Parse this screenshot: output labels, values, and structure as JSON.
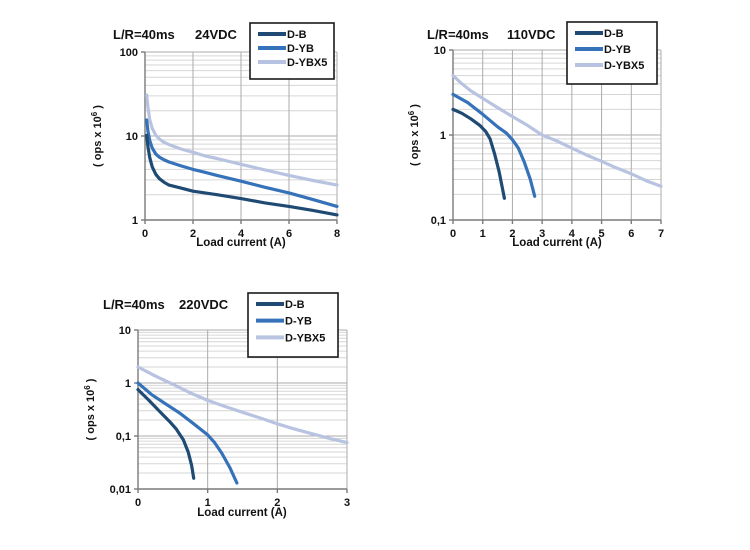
{
  "page": {
    "background": "#ffffff"
  },
  "palette": {
    "series_d_b": "#1f4a73",
    "series_d_yb": "#3672b9",
    "series_d_ybx5": "#b7c3e0",
    "grid_major": "#ababab",
    "grid_minor": "#d6d6d6",
    "axis": "#7a7a7a",
    "text": "#111111",
    "legend_border": "#1a1a1a",
    "legend_bg": "#ffffff"
  },
  "chart_data": [
    {
      "type": "line",
      "title": "L/R=40ms",
      "voltage": "24VDC",
      "xlabel": "Load current (A)",
      "ylabel_base": "( ops x 10",
      "ylabel_sup": "6",
      "ylabel_end": " )",
      "xlim": [
        0,
        8
      ],
      "x_ticks": [
        0,
        2,
        4,
        6,
        8
      ],
      "ylog_lim": [
        1,
        100
      ],
      "y_ticks": [
        {
          "v": 1,
          "label": "1"
        },
        {
          "v": 10,
          "label": "10"
        },
        {
          "v": 100,
          "label": "100"
        }
      ],
      "grid": "log-minor",
      "legend_position": "top-right",
      "legend": [
        "D-B",
        "D-YB",
        "D-YBX5"
      ],
      "series": [
        {
          "name": "D-B",
          "color_key": "series_d_b",
          "points": [
            [
              0.07,
              10.2
            ],
            [
              0.12,
              7.5
            ],
            [
              0.2,
              5.5
            ],
            [
              0.3,
              4.3
            ],
            [
              0.45,
              3.5
            ],
            [
              0.6,
              3.1
            ],
            [
              0.8,
              2.8
            ],
            [
              1,
              2.6
            ],
            [
              1.5,
              2.4
            ],
            [
              2,
              2.2
            ],
            [
              2.5,
              2.1
            ],
            [
              3,
              2.0
            ],
            [
              4,
              1.8
            ],
            [
              5,
              1.6
            ],
            [
              6,
              1.45
            ],
            [
              7,
              1.3
            ],
            [
              8,
              1.15
            ]
          ]
        },
        {
          "name": "D-YB",
          "color_key": "series_d_yb",
          "points": [
            [
              0.07,
              15.5
            ],
            [
              0.12,
              11.5
            ],
            [
              0.2,
              8.8
            ],
            [
              0.3,
              7.2
            ],
            [
              0.45,
              6.1
            ],
            [
              0.6,
              5.6
            ],
            [
              0.8,
              5.2
            ],
            [
              1,
              4.9
            ],
            [
              1.5,
              4.4
            ],
            [
              2,
              4.0
            ],
            [
              2.5,
              3.7
            ],
            [
              3,
              3.4
            ],
            [
              4,
              2.9
            ],
            [
              5,
              2.45
            ],
            [
              6,
              2.1
            ],
            [
              7,
              1.75
            ],
            [
              8,
              1.45
            ]
          ]
        },
        {
          "name": "D-YBX5",
          "color_key": "series_d_ybx5",
          "points": [
            [
              0.07,
              30.8
            ],
            [
              0.12,
              22
            ],
            [
              0.2,
              15.5
            ],
            [
              0.3,
              12.3
            ],
            [
              0.45,
              10.2
            ],
            [
              0.6,
              9.2
            ],
            [
              0.8,
              8.4
            ],
            [
              1,
              7.9
            ],
            [
              1.5,
              7.0
            ],
            [
              2,
              6.4
            ],
            [
              2.5,
              5.8
            ],
            [
              3,
              5.4
            ],
            [
              4,
              4.6
            ],
            [
              5,
              3.95
            ],
            [
              6,
              3.4
            ],
            [
              7,
              2.95
            ],
            [
              8,
              2.6
            ]
          ]
        }
      ]
    },
    {
      "type": "line",
      "title": "L/R=40ms",
      "voltage": "110VDC",
      "xlabel": "Load current (A)",
      "ylabel_base": "( ops x 10",
      "ylabel_sup": "6",
      "ylabel_end": " )",
      "xlim": [
        0,
        7
      ],
      "x_ticks": [
        0,
        1,
        2,
        3,
        4,
        5,
        6,
        7
      ],
      "ylog_lim": [
        0.1,
        10
      ],
      "y_ticks": [
        {
          "v": 0.1,
          "label": "0,1"
        },
        {
          "v": 1,
          "label": "1"
        },
        {
          "v": 10,
          "label": "10"
        }
      ],
      "grid": "log-minor",
      "legend_position": "top-right",
      "legend": [
        "D-B",
        "D-YB",
        "D-YBX5"
      ],
      "series": [
        {
          "name": "D-B",
          "color_key": "series_d_b",
          "points": [
            [
              0,
              2.0
            ],
            [
              0.3,
              1.8
            ],
            [
              0.6,
              1.55
            ],
            [
              0.9,
              1.3
            ],
            [
              1.1,
              1.1
            ],
            [
              1.25,
              0.9
            ],
            [
              1.4,
              0.6
            ],
            [
              1.55,
              0.37
            ],
            [
              1.65,
              0.25
            ],
            [
              1.73,
              0.18
            ]
          ]
        },
        {
          "name": "D-YB",
          "color_key": "series_d_yb",
          "points": [
            [
              0,
              3.0
            ],
            [
              0.5,
              2.4
            ],
            [
              1,
              1.75
            ],
            [
              1.5,
              1.25
            ],
            [
              1.8,
              1.05
            ],
            [
              2,
              0.88
            ],
            [
              2.2,
              0.7
            ],
            [
              2.4,
              0.48
            ],
            [
              2.6,
              0.3
            ],
            [
              2.75,
              0.19
            ]
          ]
        },
        {
          "name": "D-YBX5",
          "color_key": "series_d_ybx5",
          "points": [
            [
              0,
              5.0
            ],
            [
              0.3,
              4.0
            ],
            [
              0.6,
              3.3
            ],
            [
              1,
              2.7
            ],
            [
              1.5,
              2.1
            ],
            [
              2,
              1.65
            ],
            [
              2.5,
              1.3
            ],
            [
              3,
              1.0
            ],
            [
              3.5,
              0.85
            ],
            [
              4,
              0.7
            ],
            [
              4.5,
              0.58
            ],
            [
              5,
              0.49
            ],
            [
              5.5,
              0.41
            ],
            [
              6,
              0.35
            ],
            [
              6.5,
              0.29
            ],
            [
              7,
              0.25
            ]
          ]
        }
      ]
    },
    {
      "type": "line",
      "title": "L/R=40ms",
      "voltage": "220VDC",
      "xlabel": "Load current (A)",
      "ylabel_base": "( ops x 10",
      "ylabel_sup": "6",
      "ylabel_end": " )",
      "xlim": [
        0,
        3
      ],
      "x_ticks": [
        0,
        1,
        2,
        3
      ],
      "ylog_lim": [
        0.01,
        10
      ],
      "y_ticks": [
        {
          "v": 0.01,
          "label": "0,01"
        },
        {
          "v": 0.1,
          "label": "0,1"
        },
        {
          "v": 1,
          "label": "1"
        },
        {
          "v": 10,
          "label": "10"
        }
      ],
      "grid": "log-minor",
      "legend_position": "top-right",
      "legend": [
        "D-B",
        "D-YB",
        "D-YBX5"
      ],
      "series": [
        {
          "name": "D-B",
          "color_key": "series_d_b",
          "points": [
            [
              0,
              0.75
            ],
            [
              0.15,
              0.48
            ],
            [
              0.3,
              0.3
            ],
            [
              0.45,
              0.19
            ],
            [
              0.55,
              0.135
            ],
            [
              0.65,
              0.085
            ],
            [
              0.72,
              0.05
            ],
            [
              0.77,
              0.028
            ],
            [
              0.8,
              0.016
            ]
          ]
        },
        {
          "name": "D-YB",
          "color_key": "series_d_yb",
          "points": [
            [
              0,
              1.0
            ],
            [
              0.2,
              0.6
            ],
            [
              0.4,
              0.4
            ],
            [
              0.6,
              0.27
            ],
            [
              0.8,
              0.17
            ],
            [
              1.0,
              0.105
            ],
            [
              1.1,
              0.075
            ],
            [
              1.2,
              0.048
            ],
            [
              1.32,
              0.025
            ],
            [
              1.42,
              0.013
            ]
          ]
        },
        {
          "name": "D-YBX5",
          "color_key": "series_d_ybx5",
          "points": [
            [
              0,
              2.0
            ],
            [
              0.25,
              1.35
            ],
            [
              0.5,
              0.95
            ],
            [
              0.75,
              0.65
            ],
            [
              1,
              0.47
            ],
            [
              1.25,
              0.36
            ],
            [
              1.5,
              0.28
            ],
            [
              1.75,
              0.22
            ],
            [
              2,
              0.17
            ],
            [
              2.25,
              0.135
            ],
            [
              2.5,
              0.11
            ],
            [
              2.75,
              0.09
            ],
            [
              3,
              0.075
            ]
          ]
        }
      ]
    }
  ]
}
